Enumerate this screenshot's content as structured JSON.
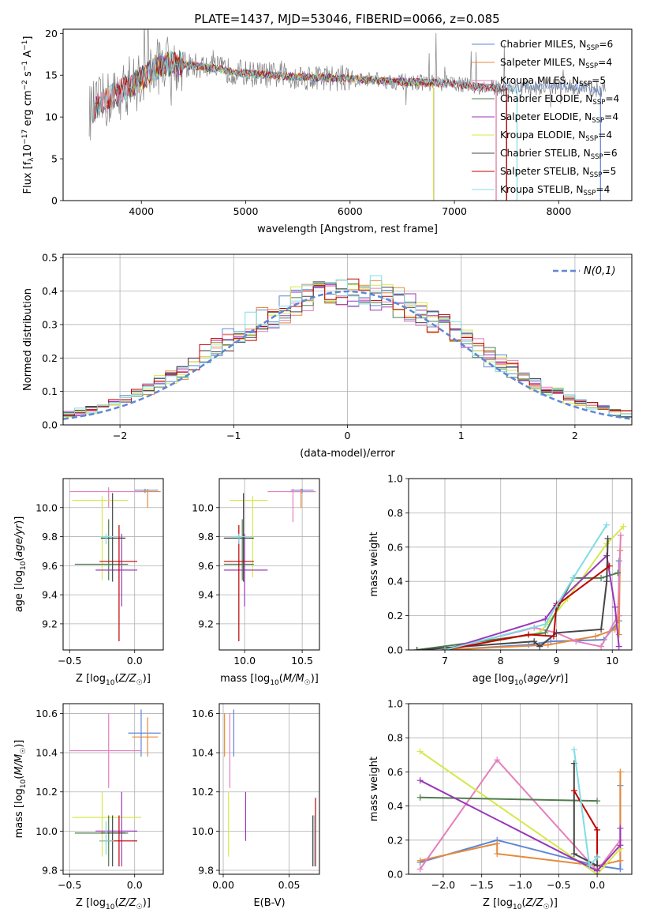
{
  "figure": {
    "title": "PLATE=1437, MJD=53046, FIBERID=0066, z=0.085"
  },
  "chart_data": [
    {
      "id": "spectrum",
      "type": "line",
      "xlabel": "wavelength [Angstrom, rest frame]",
      "ylabel": "Flux [f_λ 10^-17 erg cm^-2 s^-1 A^-1]",
      "xlim": [
        3250,
        8700
      ],
      "ylim": [
        0,
        20.5
      ],
      "xticks": [
        4000,
        5000,
        6000,
        7000,
        8000
      ],
      "yticks": [
        0,
        5,
        10,
        15,
        20
      ],
      "grid": false,
      "legend_position": "upper-right",
      "series": [
        {
          "name": "Chabrier MILES, N_SSP=6",
          "label_main": "Chabrier MILES, N",
          "label_sub": "SSP",
          "label_tail": "=6",
          "color": "#5f86d6",
          "x_range": [
            3540,
            8400
          ]
        },
        {
          "name": "Salpeter MILES, N_SSP=4",
          "label_main": "Salpeter MILES, N",
          "label_sub": "SSP",
          "label_tail": "=4",
          "color": "#e68a3a",
          "x_range": [
            3540,
            7400
          ]
        },
        {
          "name": "Kroupa MILES, N_SSP=5",
          "label_main": "Kroupa MILES, N",
          "label_sub": "SSP",
          "label_tail": "=5",
          "color": "#e57fbd",
          "x_range": [
            3540,
            7400
          ]
        },
        {
          "name": "Chabrier ELODIE, N_SSP=4",
          "label_main": "Chabrier ELODIE, N",
          "label_sub": "SSP",
          "label_tail": "=4",
          "color": "#4e7d4e",
          "x_range": [
            3900,
            6800
          ]
        },
        {
          "name": "Salpeter ELODIE, N_SSP=4",
          "label_main": "Salpeter ELODIE, N",
          "label_sub": "SSP",
          "label_tail": "=4",
          "color": "#9a36b8",
          "x_range": [
            3900,
            6800
          ]
        },
        {
          "name": "Kroupa ELODIE, N_SSP=4",
          "label_main": "Kroupa ELODIE, N",
          "label_sub": "SSP",
          "label_tail": "=4",
          "color": "#d6e84a",
          "x_range": [
            3900,
            6800
          ]
        },
        {
          "name": "Chabrier STELIB, N_SSP=6",
          "label_main": "Chabrier STELIB, N",
          "label_sub": "SSP",
          "label_tail": "=6",
          "color": "#454545",
          "x_range": [
            3540,
            7500
          ]
        },
        {
          "name": "Salpeter STELIB, N_SSP=5",
          "label_main": "Salpeter STELIB, N",
          "label_sub": "SSP",
          "label_tail": "=5",
          "color": "#c00000",
          "x_range": [
            3540,
            7500
          ]
        },
        {
          "name": "Kroupa STELIB, N_SSP=4",
          "label_main": "Kroupa STELIB, N",
          "label_sub": "SSP",
          "label_tail": "=4",
          "color": "#7fdde3",
          "x_range": [
            3540,
            7600
          ]
        }
      ],
      "data_color": "#808080",
      "continuum_x": [
        3500,
        3600,
        3800,
        4000,
        4200,
        4600,
        5000,
        5500,
        6000,
        6500,
        7000,
        7300,
        7600,
        8000,
        8400
      ],
      "continuum_y": [
        10.5,
        11.5,
        13.0,
        14.5,
        16.5,
        16.0,
        15.2,
        14.8,
        14.6,
        14.2,
        14.0,
        13.5,
        13.5,
        13.7,
        13.3
      ]
    },
    {
      "id": "residuals",
      "type": "histogram",
      "xlabel": "(data-model)/error",
      "ylabel": "Normed distribution",
      "xlim": [
        -2.5,
        2.5
      ],
      "ylim": [
        0,
        0.51
      ],
      "xticks": [
        -2,
        -1,
        0,
        1,
        2
      ],
      "yticks": [
        0.0,
        0.1,
        0.2,
        0.3,
        0.4,
        0.5
      ],
      "grid": true,
      "bin_width": 0.1,
      "reference_curve": {
        "name": "N(0,1)",
        "color": "#5f86d6",
        "style": "dashed"
      },
      "legend_position": "upper-right"
    },
    {
      "id": "age_vs_Z",
      "type": "errorbar",
      "xlabel": "Z [log10(Z/Z☉)]",
      "ylabel": "age [log10(age/yr)]",
      "xlim": [
        -0.55,
        0.22
      ],
      "ylim": [
        9.02,
        10.2
      ],
      "xticks": [
        -0.5,
        0.0
      ],
      "yticks": [
        9.2,
        9.4,
        9.6,
        9.8,
        10.0
      ],
      "grid": true,
      "points": [
        {
          "c": "#5f86d6",
          "x": 0.08,
          "xl": 0.0,
          "xh": 0.18,
          "y": 10.12,
          "yl": 10.1,
          "yh": 10.13
        },
        {
          "c": "#e68a3a",
          "x": 0.1,
          "xl": 0.0,
          "xh": 0.2,
          "y": 10.11,
          "yl": 10.0,
          "yh": 10.13
        },
        {
          "c": "#e57fbd",
          "x": -0.2,
          "xl": -0.5,
          "xh": 0.05,
          "y": 10.11,
          "yl": 10.0,
          "yh": 10.14
        },
        {
          "c": "#d6e84a",
          "x": -0.25,
          "xl": -0.48,
          "xh": -0.05,
          "y": 10.05,
          "yl": 9.5,
          "yh": 10.08
        },
        {
          "c": "#4e7d4e",
          "x": -0.2,
          "xl": -0.46,
          "xh": -0.05,
          "y": 9.61,
          "yl": 9.5,
          "yh": 9.92
        },
        {
          "c": "#9a36b8",
          "x": -0.1,
          "xl": -0.3,
          "xh": 0.02,
          "y": 9.57,
          "yl": 9.32,
          "yh": 9.82
        },
        {
          "c": "#454545",
          "x": -0.17,
          "xl": -0.26,
          "xh": -0.07,
          "y": 9.79,
          "yl": 9.49,
          "yh": 10.1
        },
        {
          "c": "#c00000",
          "x": -0.12,
          "xl": -0.27,
          "xh": 0.02,
          "y": 9.63,
          "yl": 9.08,
          "yh": 9.88
        },
        {
          "c": "#7fdde3",
          "x": -0.22,
          "xl": -0.27,
          "xh": -0.16,
          "y": 9.8,
          "yl": 9.75,
          "yh": 9.82
        }
      ]
    },
    {
      "id": "age_vs_mass",
      "type": "errorbar",
      "xlabel": "mass [log10(M/M☉)]",
      "ylabel": "",
      "xlim": [
        9.78,
        10.65
      ],
      "ylim": [
        9.02,
        10.2
      ],
      "xticks": [
        10.0,
        10.5
      ],
      "yticks": [
        9.2,
        9.4,
        9.6,
        9.8,
        10.0
      ],
      "grid": true,
      "points": [
        {
          "c": "#5f86d6",
          "x": 10.5,
          "xl": 10.4,
          "xh": 10.6,
          "y": 10.12,
          "yl": 10.1,
          "yh": 10.13
        },
        {
          "c": "#e68a3a",
          "x": 10.49,
          "xl": 10.38,
          "xh": 10.61,
          "y": 10.11,
          "yl": 10.0,
          "yh": 10.13
        },
        {
          "c": "#e57fbd",
          "x": 10.42,
          "xl": 10.2,
          "xh": 10.62,
          "y": 10.11,
          "yl": 9.9,
          "yh": 10.13
        },
        {
          "c": "#d6e84a",
          "x": 10.07,
          "xl": 9.87,
          "xh": 10.2,
          "y": 10.05,
          "yl": 9.52,
          "yh": 10.08
        },
        {
          "c": "#4e7d4e",
          "x": 9.98,
          "xl": 9.82,
          "xh": 10.08,
          "y": 9.61,
          "yl": 9.5,
          "yh": 9.92
        },
        {
          "c": "#9a36b8",
          "x": 10.0,
          "xl": 9.82,
          "xh": 10.2,
          "y": 9.57,
          "yl": 9.32,
          "yh": 9.82
        },
        {
          "c": "#454545",
          "x": 9.99,
          "xl": 9.82,
          "xh": 10.08,
          "y": 9.79,
          "yl": 9.49,
          "yh": 10.1
        },
        {
          "c": "#c00000",
          "x": 9.95,
          "xl": 9.82,
          "xh": 10.08,
          "y": 9.63,
          "yl": 9.08,
          "yh": 9.88
        },
        {
          "c": "#7fdde3",
          "x": 9.95,
          "xl": 9.88,
          "xh": 10.05,
          "y": 9.8,
          "yl": 9.75,
          "yh": 9.82
        }
      ]
    },
    {
      "id": "mass_weight_vs_age",
      "type": "line",
      "xlabel": "age [log10(age/yr)]",
      "ylabel": "mass weight",
      "xlim": [
        6.35,
        10.35
      ],
      "ylim": [
        0,
        1.0
      ],
      "xticks": [
        7,
        8,
        9,
        10
      ],
      "yticks": [
        0.0,
        0.2,
        0.4,
        0.6,
        0.8,
        1.0
      ],
      "grid": true,
      "series": [
        {
          "c": "#5f86d6",
          "x": [
            7.0,
            8.5,
            8.9,
            9.85,
            10.12,
            10.12
          ],
          "y": [
            0.0,
            0.03,
            0.05,
            0.06,
            0.17,
            0.52
          ]
        },
        {
          "c": "#e68a3a",
          "x": [
            7.0,
            8.85,
            9.7,
            10.05,
            10.12,
            10.14,
            10.12
          ],
          "y": [
            0.0,
            0.03,
            0.08,
            0.12,
            0.2,
            0.58,
            0.09
          ]
        },
        {
          "c": "#e57fbd",
          "x": [
            7.0,
            8.6,
            9.0,
            9.35,
            9.8,
            10.1,
            10.15
          ],
          "y": [
            0.0,
            0.13,
            0.1,
            0.05,
            0.02,
            0.2,
            0.67
          ]
        },
        {
          "c": "#d6e84a",
          "x": [
            7.0,
            8.7,
            9.2,
            9.9,
            10.2
          ],
          "y": [
            0.0,
            0.1,
            0.3,
            0.62,
            0.72
          ]
        },
        {
          "c": "#4e7d4e",
          "x": [
            6.5,
            8.8,
            9.3,
            9.8,
            10.1
          ],
          "y": [
            0.0,
            0.1,
            0.42,
            0.42,
            0.45
          ]
        },
        {
          "c": "#9a36b8",
          "x": [
            7.0,
            8.8,
            9.0,
            9.9,
            10.05,
            10.12
          ],
          "y": [
            0.0,
            0.18,
            0.27,
            0.55,
            0.25,
            0.02
          ]
        },
        {
          "c": "#454545",
          "x": [
            6.5,
            8.6,
            8.7,
            9.0,
            9.8,
            9.9,
            9.92
          ],
          "y": [
            0.0,
            0.05,
            0.02,
            0.1,
            0.12,
            0.4,
            0.65
          ]
        },
        {
          "c": "#c00000",
          "x": [
            7.0,
            8.5,
            8.95,
            9.0,
            9.95
          ],
          "y": [
            0.0,
            0.09,
            0.08,
            0.26,
            0.49
          ]
        },
        {
          "c": "#7fdde3",
          "x": [
            7.0,
            8.8,
            9.3,
            9.9
          ],
          "y": [
            0.0,
            0.15,
            0.42,
            0.73
          ]
        }
      ]
    },
    {
      "id": "mass_vs_Z",
      "type": "errorbar",
      "xlabel": "Z [log10(Z/Z☉)]",
      "ylabel": "mass [log10(M/M☉)]",
      "xlim": [
        -0.55,
        0.22
      ],
      "ylim": [
        9.78,
        10.65
      ],
      "xticks": [
        -0.5,
        0.0
      ],
      "yticks": [
        9.8,
        10.0,
        10.2,
        10.4,
        10.6
      ],
      "grid": true,
      "points": [
        {
          "c": "#5f86d6",
          "x": 0.05,
          "xl": -0.05,
          "xh": 0.2,
          "y": 10.5,
          "yl": 10.38,
          "yh": 10.62
        },
        {
          "c": "#e68a3a",
          "x": 0.1,
          "xl": -0.02,
          "xh": 0.18,
          "y": 10.48,
          "yl": 10.38,
          "yh": 10.58
        },
        {
          "c": "#e57fbd",
          "x": -0.2,
          "xl": -0.5,
          "xh": 0.05,
          "y": 10.41,
          "yl": 10.22,
          "yh": 10.6
        },
        {
          "c": "#d6e84a",
          "x": -0.25,
          "xl": -0.48,
          "xh": 0.05,
          "y": 10.07,
          "yl": 9.87,
          "yh": 10.2
        },
        {
          "c": "#4e7d4e",
          "x": -0.2,
          "xl": -0.46,
          "xh": -0.05,
          "y": 9.99,
          "yl": 9.82,
          "yh": 10.08
        },
        {
          "c": "#9a36b8",
          "x": -0.1,
          "xl": -0.3,
          "xh": 0.02,
          "y": 10.0,
          "yl": 9.82,
          "yh": 10.2
        },
        {
          "c": "#454545",
          "x": -0.17,
          "xl": -0.26,
          "xh": -0.07,
          "y": 9.99,
          "yl": 9.82,
          "yh": 10.08
        },
        {
          "c": "#c00000",
          "x": -0.12,
          "xl": -0.27,
          "xh": 0.02,
          "y": 9.95,
          "yl": 9.82,
          "yh": 10.08
        },
        {
          "c": "#7fdde3",
          "x": -0.22,
          "xl": -0.27,
          "xh": -0.16,
          "y": 9.95,
          "yl": 9.88,
          "yh": 10.05
        }
      ]
    },
    {
      "id": "mass_vs_ebv",
      "type": "errorbar",
      "xlabel": "E(B-V)",
      "ylabel": "",
      "xlim": [
        -0.003,
        0.073
      ],
      "ylim": [
        9.78,
        10.65
      ],
      "xticks": [
        0.0,
        0.05
      ],
      "yticks": [
        9.8,
        10.0,
        10.2,
        10.4,
        10.6
      ],
      "grid": true,
      "points": [
        {
          "c": "#5f86d6",
          "x": 0.008,
          "xl": 0.008,
          "xh": 0.008,
          "y": 10.5,
          "yl": 10.38,
          "yh": 10.62
        },
        {
          "c": "#e68a3a",
          "x": 0.001,
          "xl": 0.001,
          "xh": 0.001,
          "y": 10.48,
          "yl": 10.38,
          "yh": 10.6
        },
        {
          "c": "#e57fbd",
          "x": 0.005,
          "xl": 0.005,
          "xh": 0.005,
          "y": 10.41,
          "yl": 10.22,
          "yh": 10.6
        },
        {
          "c": "#d6e84a",
          "x": 0.004,
          "xl": 0.004,
          "xh": 0.004,
          "y": 10.05,
          "yl": 9.87,
          "yh": 10.2
        },
        {
          "c": "#9a36b8",
          "x": 0.017,
          "xl": 0.017,
          "xh": 0.017,
          "y": 10.08,
          "yl": 9.95,
          "yh": 10.2
        },
        {
          "c": "#454545",
          "x": 0.068,
          "xl": 0.068,
          "xh": 0.068,
          "y": 9.95,
          "yl": 9.82,
          "yh": 10.08
        },
        {
          "c": "#c00000",
          "x": 0.07,
          "xl": 0.07,
          "xh": 0.07,
          "y": 10.0,
          "yl": 9.82,
          "yh": 10.17
        },
        {
          "c": "#7fdde3",
          "x": 0.069,
          "xl": 0.069,
          "xh": 0.069,
          "y": 9.95,
          "yl": 9.82,
          "yh": 10.08
        }
      ]
    },
    {
      "id": "mass_weight_vs_Z",
      "type": "line",
      "xlabel": "Z [log10(Z/Z☉)]",
      "ylabel": "mass weight",
      "xlim": [
        -2.45,
        0.45
      ],
      "ylim": [
        0,
        1.0
      ],
      "xticks": [
        -2.0,
        -1.5,
        -1.0,
        -0.5,
        0.0
      ],
      "yticks": [
        0.0,
        0.2,
        0.4,
        0.6,
        0.8,
        1.0
      ],
      "grid": true,
      "series": [
        {
          "c": "#5f86d6",
          "x": [
            -2.3,
            -1.3,
            0.0,
            0.3,
            0.3
          ],
          "y": [
            0.07,
            0.2,
            0.05,
            0.03,
            0.52
          ]
        },
        {
          "c": "#e68a3a",
          "x": [
            -2.3,
            -1.3,
            -1.3,
            0.0,
            0.3,
            0.3
          ],
          "y": [
            0.08,
            0.18,
            0.12,
            0.05,
            0.08,
            0.6
          ]
        },
        {
          "c": "#e57fbd",
          "x": [
            -2.3,
            -1.3,
            0.0,
            0.3
          ],
          "y": [
            0.03,
            0.67,
            0.02,
            0.2
          ]
        },
        {
          "c": "#d6e84a",
          "x": [
            -2.3,
            0.0,
            0.3
          ],
          "y": [
            0.72,
            0.0,
            0.15
          ]
        },
        {
          "c": "#4e7d4e",
          "x": [
            -2.3,
            0.0
          ],
          "y": [
            0.45,
            0.43
          ]
        },
        {
          "c": "#9a36b8",
          "x": [
            -2.3,
            0.0,
            0.3,
            0.3
          ],
          "y": [
            0.55,
            0.02,
            0.17,
            0.27
          ]
        },
        {
          "c": "#454545",
          "x": [
            -0.3,
            -0.3,
            0.0,
            0.0
          ],
          "y": [
            0.65,
            0.12,
            0.05,
            0.1
          ]
        },
        {
          "c": "#c00000",
          "x": [
            -0.3,
            0.0,
            0.0
          ],
          "y": [
            0.49,
            0.26,
            0.1
          ]
        },
        {
          "c": "#7fdde3",
          "x": [
            -0.3,
            -0.1,
            0.0
          ],
          "y": [
            0.73,
            0.05,
            0.1
          ]
        }
      ]
    }
  ]
}
